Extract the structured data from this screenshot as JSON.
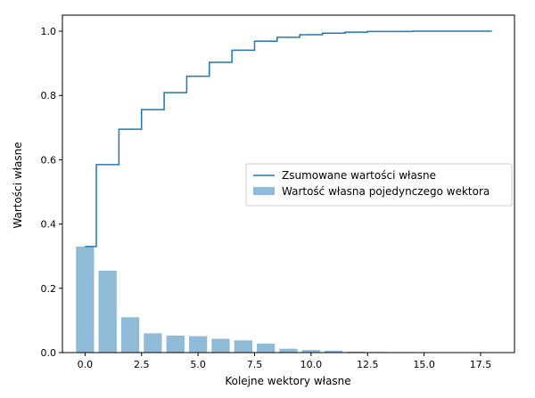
{
  "chart_data": {
    "type": "bar",
    "xlabel": "Kolejne wektory własne",
    "ylabel": "Wartości własne",
    "xlim": [
      -1.0,
      19.0
    ],
    "ylim": [
      0.0,
      1.05
    ],
    "xticks": [
      0.0,
      2.5,
      5.0,
      7.5,
      10.0,
      12.5,
      15.0,
      17.5
    ],
    "xtick_labels": [
      "0.0",
      "2.5",
      "5.0",
      "7.5",
      "10.0",
      "12.5",
      "15.0",
      "17.5"
    ],
    "yticks": [
      0.0,
      0.2,
      0.4,
      0.6,
      0.8,
      1.0
    ],
    "ytick_labels": [
      "0.0",
      "0.2",
      "0.4",
      "0.6",
      "0.8",
      "1.0"
    ],
    "legend_position": "center-right",
    "series": [
      {
        "name": "Zsumowane wartości własne",
        "type": "step",
        "color": "#1f77b4",
        "x": [
          0,
          1,
          2,
          3,
          4,
          5,
          6,
          7,
          8,
          9,
          10,
          11,
          12,
          13,
          14,
          15,
          16,
          17,
          18
        ],
        "values": [
          0.33,
          0.585,
          0.695,
          0.756,
          0.809,
          0.86,
          0.903,
          0.941,
          0.969,
          0.981,
          0.989,
          0.994,
          0.997,
          0.999,
          0.999,
          1.0,
          1.0,
          1.0,
          1.0
        ]
      },
      {
        "name": "Wartość własna pojedynczego wektora",
        "type": "bar",
        "color": "#1f77b4",
        "opacity": 0.5,
        "x": [
          0,
          1,
          2,
          3,
          4,
          5,
          6,
          7,
          8,
          9,
          10,
          11,
          12,
          13,
          14,
          15,
          16,
          17,
          18
        ],
        "values": [
          0.33,
          0.255,
          0.11,
          0.06,
          0.053,
          0.051,
          0.043,
          0.038,
          0.028,
          0.012,
          0.008,
          0.006,
          0.003,
          0.002,
          0.0015,
          0.001,
          0.0008,
          0.0005,
          0.0004
        ]
      }
    ]
  }
}
